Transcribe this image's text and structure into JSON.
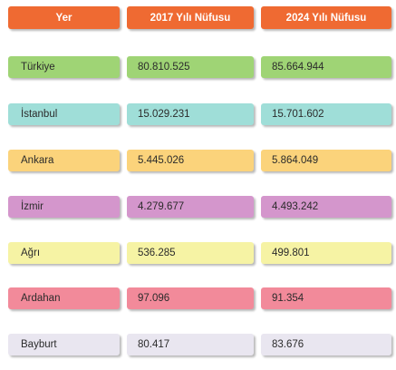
{
  "headers": [
    "Yer",
    "2017 Yılı Nüfusu",
    "2024 Yılı Nüfusu"
  ],
  "header_color": "#ef6a32",
  "rows": [
    {
      "place": "Türkiye",
      "pop_2017": "80.810.525",
      "pop_2024": "85.664.944",
      "color": "#9fd475"
    },
    {
      "place": "İstanbul",
      "pop_2017": "15.029.231",
      "pop_2024": "15.701.602",
      "color": "#9fded8"
    },
    {
      "place": "Ankara",
      "pop_2017": "5.445.026",
      "pop_2024": "5.864.049",
      "color": "#fbd37b"
    },
    {
      "place": "İzmir",
      "pop_2017": "4.279.677",
      "pop_2024": "4.493.242",
      "color": "#d496cc"
    },
    {
      "place": "Ağrı",
      "pop_2017": "536.285",
      "pop_2024": "499.801",
      "color": "#f6f3a4"
    },
    {
      "place": "Ardahan",
      "pop_2017": "97.096",
      "pop_2024": "91.354",
      "color": "#f28a9a"
    },
    {
      "place": "Bayburt",
      "pop_2017": "80.417",
      "pop_2024": "83.676",
      "color": "#e9e6f0"
    }
  ]
}
